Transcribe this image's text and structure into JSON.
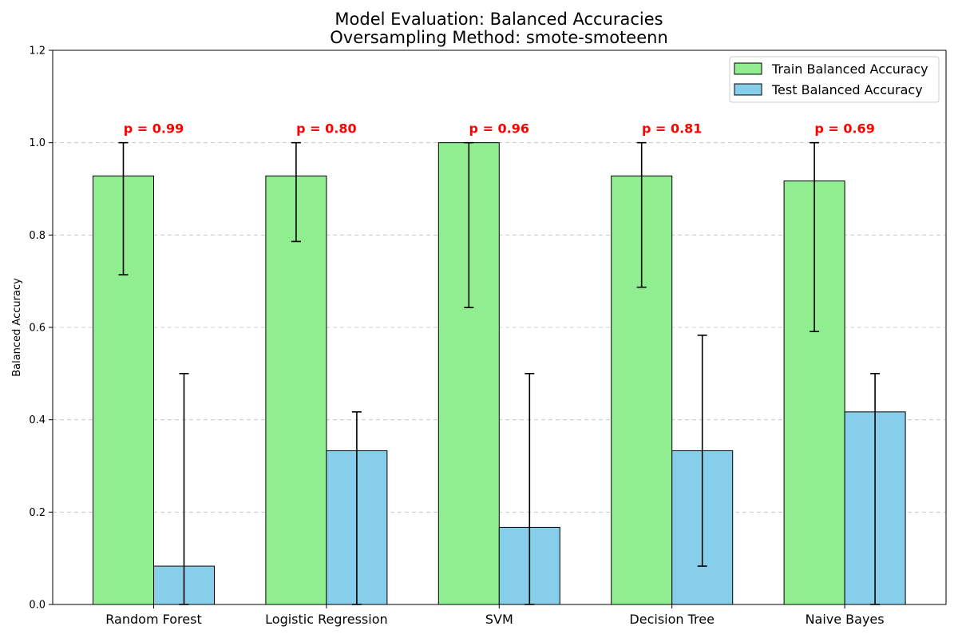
{
  "chart_data": {
    "type": "bar",
    "title": "Model Evaluation: Balanced Accuracies",
    "subtitle": "Oversampling Method: smote-smoteenn",
    "xlabel": "",
    "ylabel": "Balanced Accuracy",
    "ylim": [
      0,
      1.2
    ],
    "yticks": [
      0.0,
      0.2,
      0.4,
      0.6,
      0.8,
      1.0,
      1.2
    ],
    "ytick_labels": [
      "0.0",
      "0.2",
      "0.4",
      "0.6",
      "0.8",
      "1.0",
      "1.2"
    ],
    "grid": "y-dashed",
    "legend_position": "top-right",
    "categories": [
      "Random Forest",
      "Logistic Regression",
      "SVM",
      "Decision Tree",
      "Naive Bayes"
    ],
    "series": [
      {
        "name": "Train Balanced Accuracy",
        "color": "#90ee90",
        "values": [
          0.928,
          0.928,
          1.0,
          0.928,
          0.917
        ],
        "err_low": [
          0.714,
          0.786,
          0.643,
          0.687,
          0.591
        ],
        "err_high": [
          1.0,
          1.0,
          1.0,
          1.0,
          1.0
        ]
      },
      {
        "name": "Test Balanced Accuracy",
        "color": "#87ceeb",
        "values": [
          0.083,
          0.333,
          0.167,
          0.333,
          0.417
        ],
        "err_low": [
          0.0,
          0.0,
          0.0,
          0.083,
          0.0
        ],
        "err_high": [
          0.5,
          0.417,
          0.5,
          0.583,
          0.5
        ]
      }
    ],
    "annotations": [
      "p = 0.99",
      "p = 0.80",
      "p = 0.96",
      "p = 0.81",
      "p = 0.69"
    ],
    "annotation_y": 1.03,
    "annotation_color": "#ff0000"
  }
}
